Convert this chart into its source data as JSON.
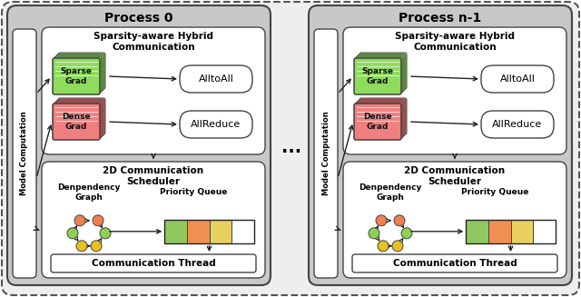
{
  "bg_color": "#ffffff",
  "outer_dash_fill": "#f0f0f0",
  "process_box_fill": "#d0d0d0",
  "inner_white": "#ffffff",
  "sparse_main": "#8edb5e",
  "sparse_shadow": "#7ac44e",
  "dense_main": "#f08080",
  "dense_shadow": "#d86060",
  "arrow_color": "#222222",
  "text_color": "#000000",
  "node_orange": "#f08050",
  "node_green": "#90d050",
  "node_yellow": "#e8c020",
  "queue_green": "#90c860",
  "queue_orange": "#f09050",
  "queue_yellow": "#e8d060",
  "queue_white": "#ffffff",
  "process0_title": "Process 0",
  "processn_title": "Process n-1",
  "sparsity_title": "Sparsity-aware Hybrid\nCommunication",
  "sparse_grad_text": "Sparse\nGrad",
  "dense_grad_text": "Dense\nGrad",
  "alltoall_text": "AlltoAll",
  "allreduce_text": "AllReduce",
  "scheduler_title": "2D Communication\nScheduler",
  "dep_graph_text": "Denpendency\nGraph",
  "priority_queue_text": "Priority Queue",
  "comm_thread_text": "Communication Thread",
  "model_comp_text": "Model Computation",
  "dots_text": "..."
}
